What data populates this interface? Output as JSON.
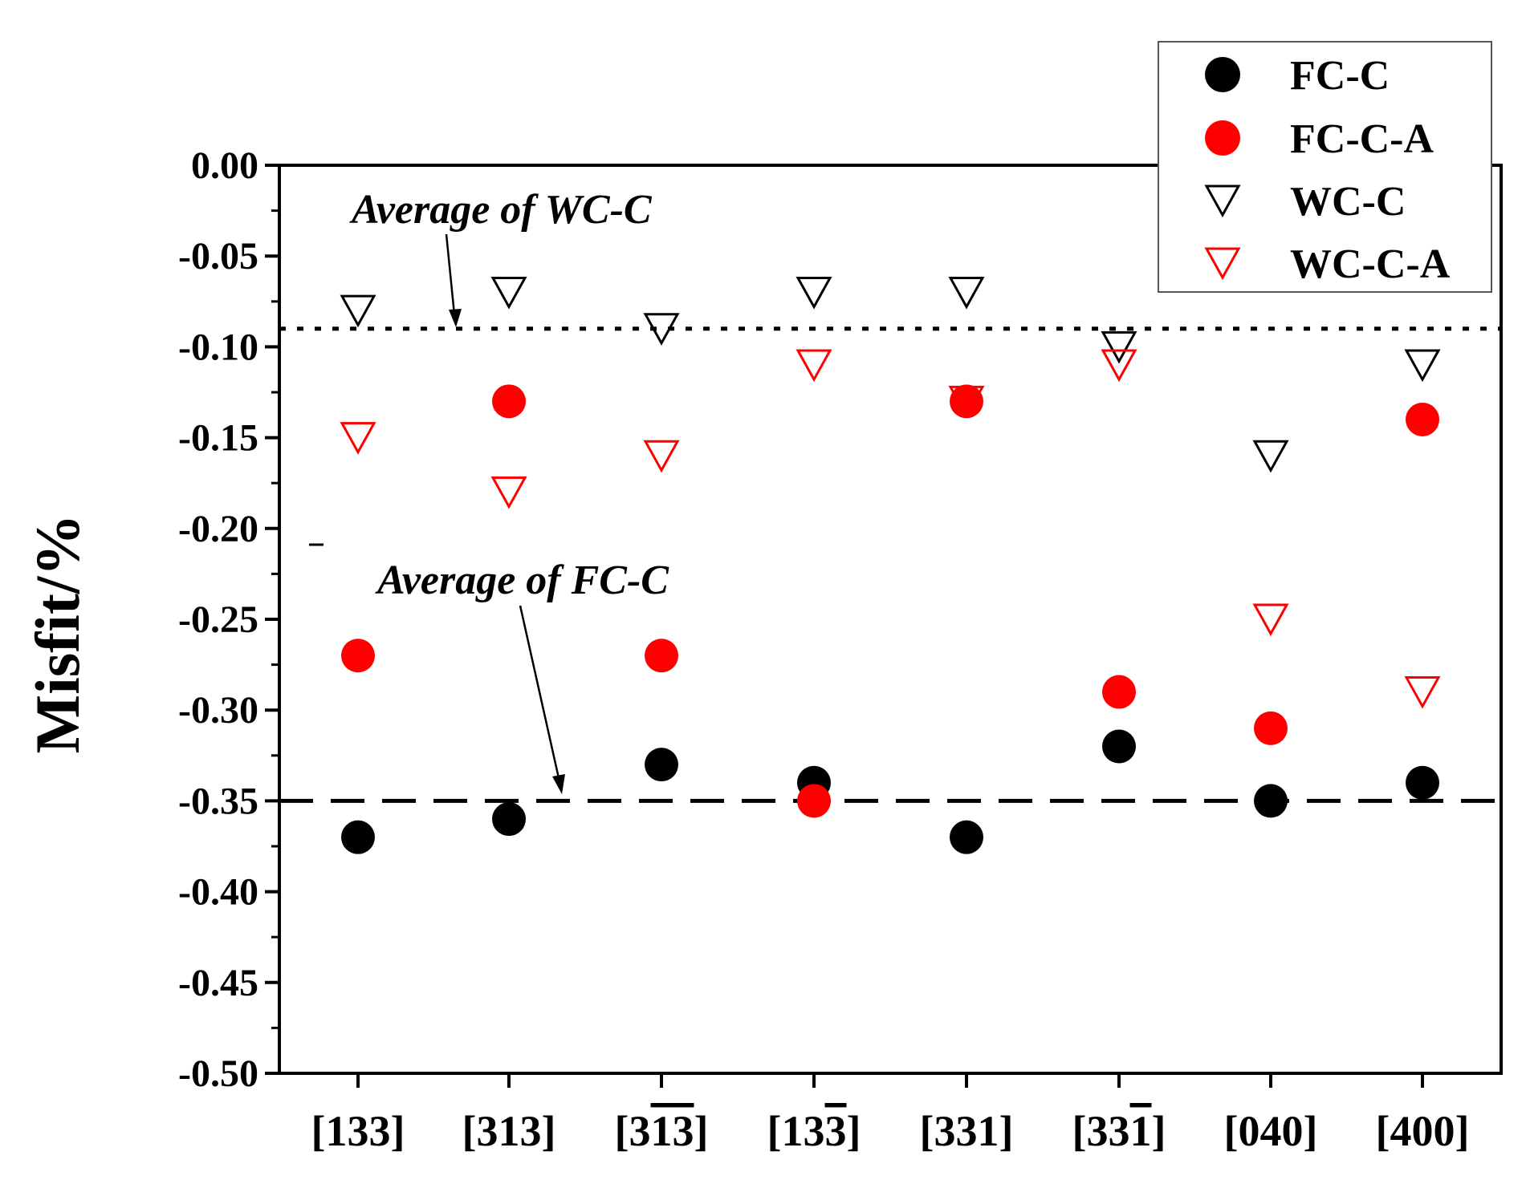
{
  "chart_data": {
    "type": "scatter",
    "ylabel": "Misfit/%",
    "xlabel": "",
    "ylim": [
      -0.5,
      0.0
    ],
    "yticks": [
      "0.00",
      "-0.05",
      "-0.10",
      "-0.15",
      "-0.20",
      "-0.25",
      "-0.30",
      "-0.35",
      "-0.40",
      "-0.45",
      "-0.50"
    ],
    "categories": [
      {
        "pre": "[",
        "d1": "1",
        "d2": "3",
        "d3": "3",
        "post": "]",
        "bar": [],
        "plain": "[133]"
      },
      {
        "pre": "[",
        "d1": "3",
        "d2": "1",
        "d3": "3",
        "post": "]",
        "bar": [],
        "plain": "[313]"
      },
      {
        "pre": "[",
        "d1": "3",
        "d2": "1",
        "d3": "3",
        "post": "]",
        "bar": [
          2,
          3
        ],
        "plain": "[3-1-3]"
      },
      {
        "pre": "[",
        "d1": "1",
        "d2": "3",
        "d3": "3",
        "post": "]",
        "bar": [
          3
        ],
        "plain": "[13-3]"
      },
      {
        "pre": "[",
        "d1": "3",
        "d2": "3",
        "d3": "1",
        "post": "]",
        "bar": [],
        "plain": "[331]"
      },
      {
        "pre": "[",
        "d1": "3",
        "d2": "3",
        "d3": "1",
        "post": "]",
        "bar": [
          3
        ],
        "plain": "[33-1]"
      },
      {
        "pre": "[",
        "d1": "0",
        "d2": "4",
        "d3": "0",
        "post": "]",
        "bar": [],
        "plain": "[040]"
      },
      {
        "pre": "[",
        "d1": "4",
        "d2": "0",
        "d3": "0",
        "post": "]",
        "bar": [],
        "plain": "[400]"
      }
    ],
    "series": [
      {
        "name": "FC-C",
        "marker": "circle",
        "filled": true,
        "color": "#000000",
        "values": [
          -0.37,
          -0.36,
          -0.33,
          -0.34,
          -0.37,
          -0.32,
          -0.35,
          -0.34
        ]
      },
      {
        "name": "FC-C-A",
        "marker": "circle",
        "filled": true,
        "color": "#ff0000",
        "values": [
          -0.27,
          -0.13,
          -0.27,
          -0.35,
          -0.13,
          -0.29,
          -0.31,
          -0.14
        ]
      },
      {
        "name": "WC-C",
        "marker": "triangle-down",
        "filled": false,
        "color": "#000000",
        "values": [
          -0.08,
          -0.07,
          -0.09,
          -0.07,
          -0.07,
          -0.1,
          -0.16,
          -0.11
        ]
      },
      {
        "name": "WC-C-A",
        "marker": "triangle-down",
        "filled": false,
        "color": "#ff0000",
        "values": [
          -0.15,
          -0.18,
          -0.16,
          -0.11,
          -0.13,
          -0.11,
          -0.25,
          -0.29
        ]
      }
    ],
    "reference_lines": [
      {
        "label": "Average of WC-C",
        "value": -0.09,
        "style": "dotted",
        "color": "#000000"
      },
      {
        "label": "Average of FC-C",
        "value": -0.35,
        "style": "dashed",
        "color": "#000000"
      }
    ],
    "legend_position": "top-right"
  }
}
